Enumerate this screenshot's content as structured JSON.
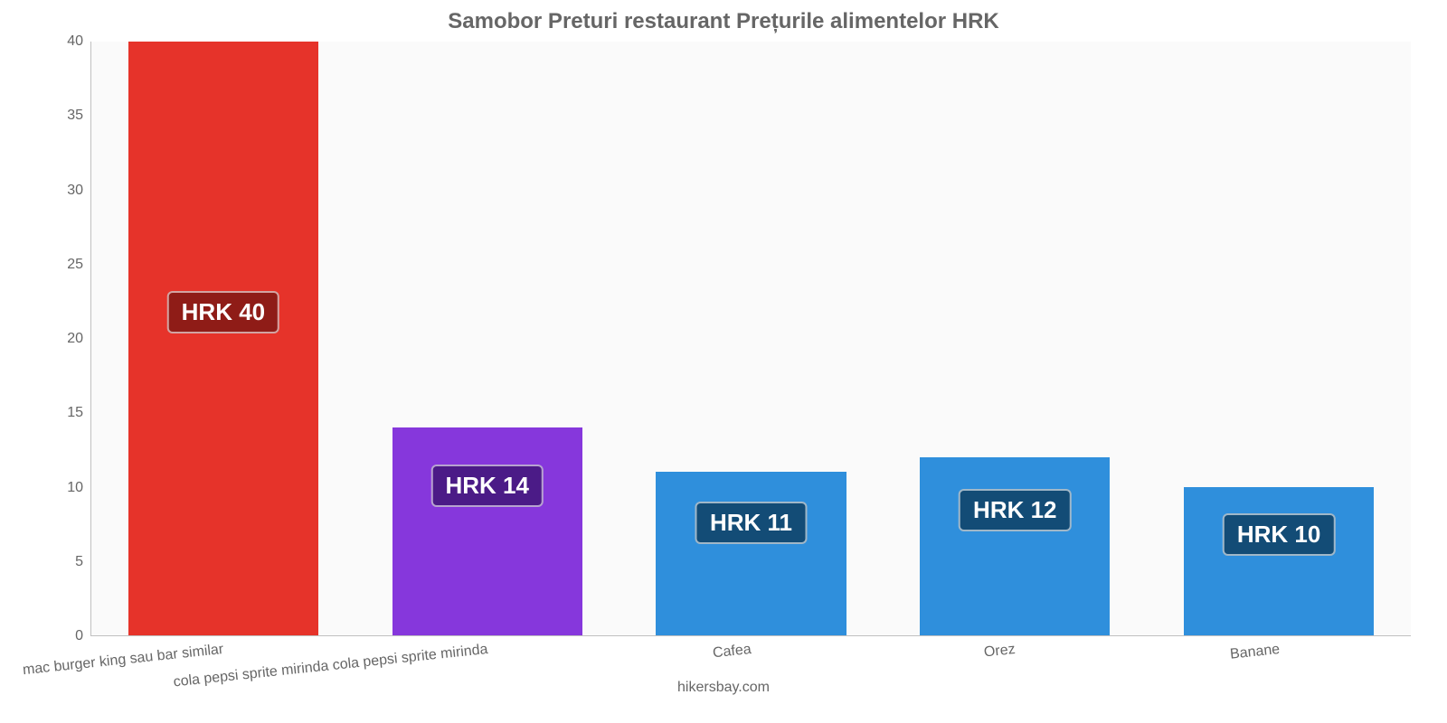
{
  "chart": {
    "type": "bar",
    "title": "Samobor Preturi restaurant Prețurile alimentelor HRK",
    "title_fontsize": 24,
    "title_color": "#666666",
    "background_color": "#fafafa",
    "grid_color": "#eaeaea",
    "axis_color": "#c0c0c0",
    "label_color": "#666666",
    "label_fontsize": 16,
    "value_label_fontsize": 26,
    "ylim": [
      0,
      40
    ],
    "yticks": [
      0,
      5,
      10,
      15,
      20,
      25,
      30,
      35,
      40
    ],
    "bar_width": 0.72,
    "categories": [
      "mac burger king sau bar similar",
      "cola pepsi sprite mirinda cola pepsi sprite mirinda",
      "Cafea",
      "Orez",
      "Banane"
    ],
    "values": [
      40,
      14,
      11,
      12,
      10
    ],
    "value_labels": [
      "HRK 40",
      "HRK 14",
      "HRK 11",
      "HRK 12",
      "HRK 10"
    ],
    "bar_colors": [
      "#e6332a",
      "#8637dc",
      "#2f8fdc",
      "#2f8fdc",
      "#2f8fdc"
    ],
    "chip_bg_colors": [
      "#8f1c17",
      "#4b1b87",
      "#134c76",
      "#134c76",
      "#134c76"
    ],
    "xtick_rotate_deg": -6,
    "credit": "hikersbay.com"
  }
}
